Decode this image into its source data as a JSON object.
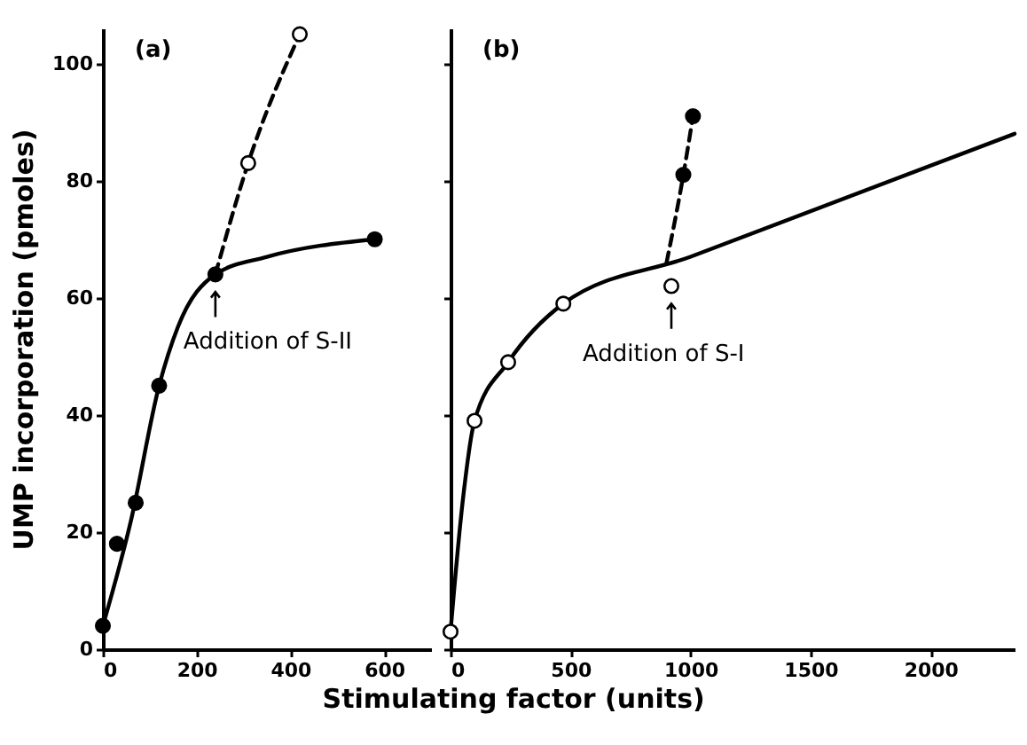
{
  "chart_data": [
    {
      "type": "line",
      "xlabel": "Stimulating factor (units)",
      "ylabel": "UMP incorporation (pmoles)",
      "xlim": [
        0,
        700
      ],
      "ylim": [
        0,
        106
      ],
      "xticks": [
        0,
        200,
        400,
        600
      ],
      "yticks": [
        0,
        20,
        40,
        60,
        80,
        100
      ],
      "grid": false,
      "annotations": [
        "(a)",
        {
          "text": "Addition of S-II",
          "x": 240,
          "y": 64
        }
      ],
      "series": [
        {
          "type": "line",
          "marker": "none",
          "line_style": "solid",
          "color": "#000000",
          "x": [
            0,
            60,
            120,
            160,
            240,
            350,
            580
          ],
          "values": [
            4,
            22,
            45,
            55,
            64,
            67,
            70
          ]
        },
        {
          "type": "scatter",
          "marker": "circle",
          "color": "#000000",
          "x": [
            0,
            30,
            70,
            120,
            240,
            580
          ],
          "values": [
            4,
            18,
            25,
            45,
            64,
            70
          ]
        },
        {
          "type": "line",
          "marker": "none",
          "line_style": "dashed",
          "color": "#000000",
          "x": [
            240,
            310,
            420
          ],
          "values": [
            64,
            83,
            105
          ]
        },
        {
          "type": "scatter",
          "marker": "circle",
          "color": "#ffffff",
          "x": [
            310,
            420
          ],
          "values": [
            83,
            105
          ]
        }
      ]
    },
    {
      "type": "line",
      "xlim": [
        0,
        2350
      ],
      "ylim": [
        0,
        106
      ],
      "xticks": [
        0,
        500,
        1000,
        1500,
        2000
      ],
      "yticks": [
        0,
        20,
        40,
        60,
        80,
        100
      ],
      "tick_labels": "x",
      "grid": false,
      "annotations": [
        "(b)",
        {
          "text": "Addition of S-I",
          "x": 920,
          "y": 62
        }
      ],
      "series": [
        {
          "type": "line",
          "marker": "none",
          "line_style": "solid",
          "color": "#000000",
          "x": [
            0,
            50,
            100,
            240,
            470,
            1000,
            2350
          ],
          "values": [
            3,
            25,
            39,
            49,
            59,
            67,
            88
          ]
        },
        {
          "type": "scatter",
          "marker": "circle",
          "color": "#ffffff",
          "x": [
            0,
            100,
            240,
            470,
            920
          ],
          "values": [
            3,
            39,
            49,
            59,
            62
          ]
        },
        {
          "type": "line",
          "marker": "none",
          "line_style": "dashed",
          "color": "#000000",
          "x": [
            900,
            970,
            1010
          ],
          "values": [
            66,
            81,
            91
          ]
        },
        {
          "type": "scatter",
          "marker": "circle",
          "color": "#000000",
          "x": [
            970,
            1010
          ],
          "values": [
            81,
            91
          ]
        }
      ]
    }
  ]
}
